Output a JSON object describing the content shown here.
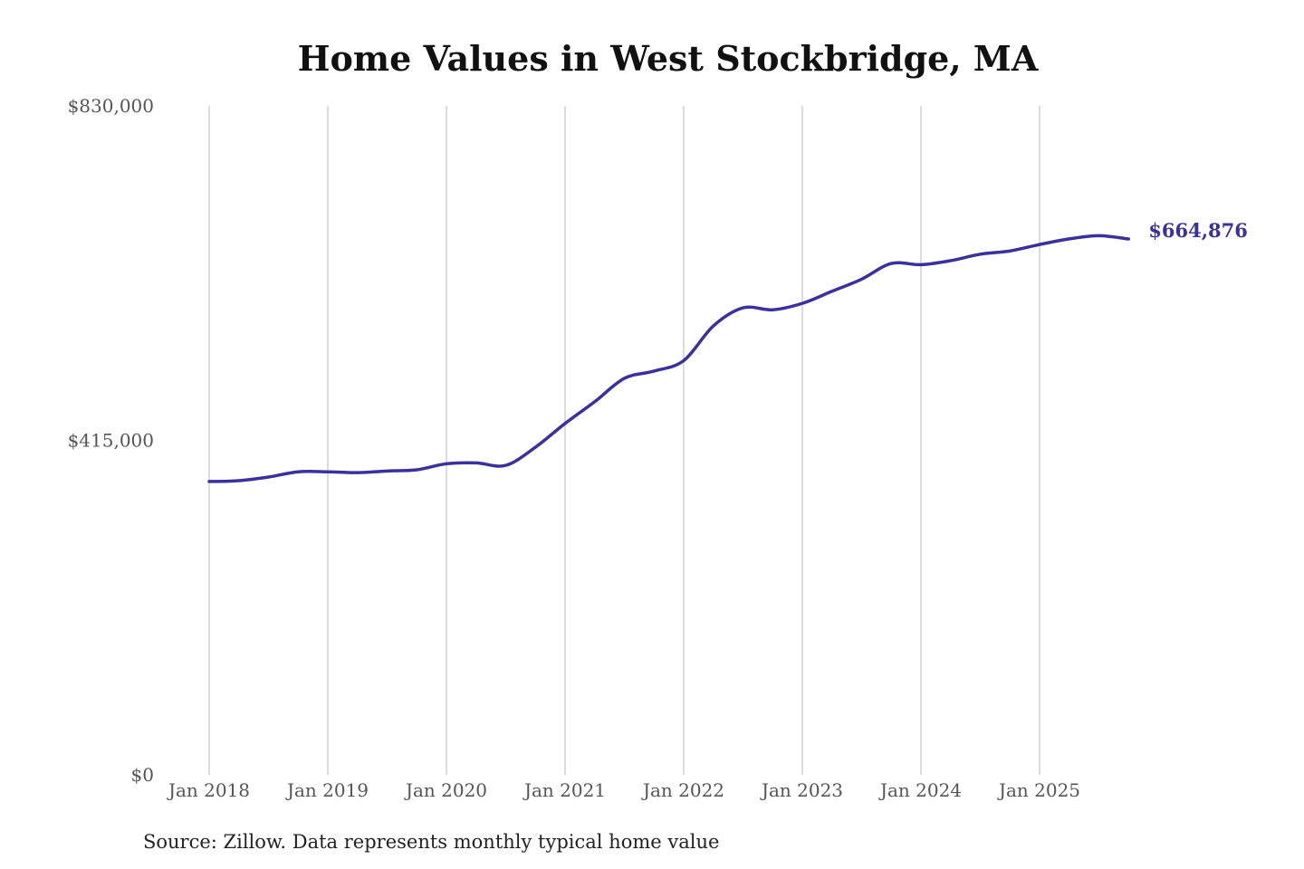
{
  "chart_data": {
    "type": "line",
    "title": "Home Values in West Stockbridge, MA",
    "source": "Source: Zillow. Data represents monthly typical home value",
    "xlabel": "",
    "ylabel": "",
    "ylim": [
      0,
      830000
    ],
    "y_ticks": [
      {
        "value": 0,
        "label": "$0"
      },
      {
        "value": 415000,
        "label": "$415,000"
      },
      {
        "value": 830000,
        "label": "$830,000"
      }
    ],
    "x_ticks": [
      {
        "month_index": 0,
        "label": "Jan 2018"
      },
      {
        "month_index": 12,
        "label": "Jan 2019"
      },
      {
        "month_index": 24,
        "label": "Jan 2020"
      },
      {
        "month_index": 36,
        "label": "Jan 2021"
      },
      {
        "month_index": 48,
        "label": "Jan 2022"
      },
      {
        "month_index": 60,
        "label": "Jan 2023"
      },
      {
        "month_index": 72,
        "label": "Jan 2024"
      },
      {
        "month_index": 84,
        "label": "Jan 2025"
      }
    ],
    "grid": "vertical",
    "series": [
      {
        "name": "Typical home value",
        "color": "#3a309e",
        "x_months_since_jan_2018": [
          0,
          3,
          6,
          9,
          12,
          15,
          18,
          21,
          24,
          27,
          30,
          33,
          36,
          39,
          42,
          45,
          48,
          51,
          54,
          57,
          60,
          63,
          66,
          69,
          72,
          75,
          78,
          81,
          84,
          87,
          90,
          93
        ],
        "values": [
          364000,
          365000,
          369500,
          376000,
          376000,
          375000,
          377000,
          378500,
          386000,
          387000,
          384000,
          406500,
          436000,
          463000,
          492000,
          501000,
          514000,
          557000,
          579500,
          577000,
          585000,
          600000,
          615000,
          634500,
          633000,
          638000,
          646000,
          650000,
          658000,
          665000,
          669000,
          664876
        ]
      }
    ],
    "end_label": "$664,876"
  }
}
